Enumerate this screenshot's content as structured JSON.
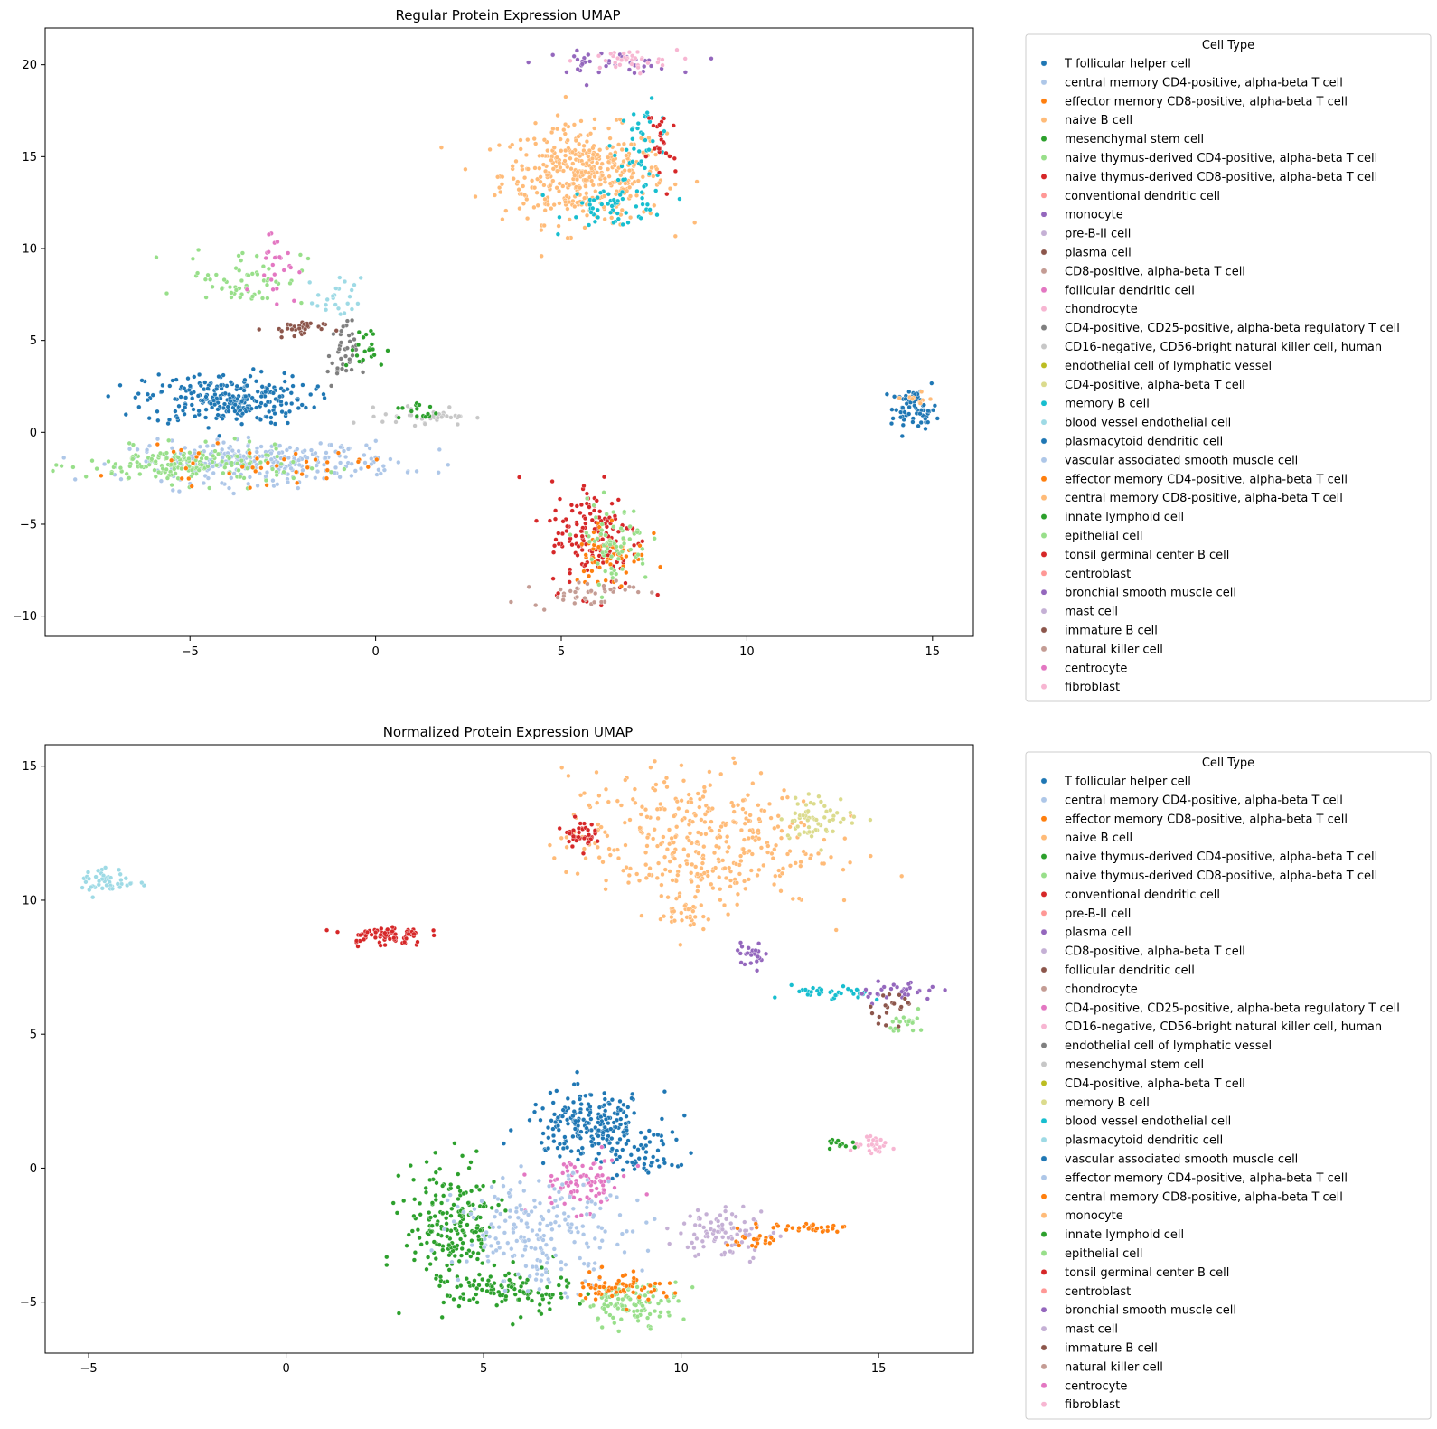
{
  "chart_data": [
    {
      "type": "scatter",
      "title": "Regular Protein Expression UMAP",
      "xlabel": "",
      "ylabel": "",
      "xlim": [
        -8.9,
        16.1
      ],
      "ylim": [
        -11.1,
        22.0
      ],
      "x_ticks": [
        -5,
        0,
        5,
        10,
        15
      ],
      "y_ticks": [
        -10,
        -5,
        0,
        5,
        10,
        15,
        20
      ],
      "grid": false,
      "legend": {
        "title": "Cell Type",
        "placement": "outside-right",
        "entries": [
          {
            "label": "T follicular helper cell",
            "color": "#1f77b4"
          },
          {
            "label": "central memory CD4-positive, alpha-beta T cell",
            "color": "#aec7e8"
          },
          {
            "label": "effector memory CD8-positive, alpha-beta T cell",
            "color": "#ff7f0e"
          },
          {
            "label": "naive B cell",
            "color": "#ffbb78"
          },
          {
            "label": "mesenchymal stem cell",
            "color": "#2ca02c"
          },
          {
            "label": "naive thymus-derived CD4-positive, alpha-beta T cell",
            "color": "#98df8a"
          },
          {
            "label": "naive thymus-derived CD8-positive, alpha-beta T cell",
            "color": "#d62728"
          },
          {
            "label": "conventional dendritic cell",
            "color": "#ff9896"
          },
          {
            "label": "monocyte",
            "color": "#9467bd"
          },
          {
            "label": "pre-B-II cell",
            "color": "#c5b0d5"
          },
          {
            "label": "plasma cell",
            "color": "#8c564b"
          },
          {
            "label": "CD8-positive, alpha-beta T cell",
            "color": "#c49c94"
          },
          {
            "label": "follicular dendritic cell",
            "color": "#e377c2"
          },
          {
            "label": "chondrocyte",
            "color": "#f7b6d2"
          },
          {
            "label": "CD4-positive, CD25-positive, alpha-beta regulatory T cell",
            "color": "#7f7f7f"
          },
          {
            "label": "CD16-negative, CD56-bright natural killer cell, human",
            "color": "#c7c7c7"
          },
          {
            "label": "endothelial cell of lymphatic vessel",
            "color": "#bcbd22"
          },
          {
            "label": "CD4-positive, alpha-beta T cell",
            "color": "#dbdb8d"
          },
          {
            "label": "memory B cell",
            "color": "#17becf"
          },
          {
            "label": "blood vessel endothelial cell",
            "color": "#9edae5"
          },
          {
            "label": "plasmacytoid dendritic cell",
            "color": "#1f77b4"
          },
          {
            "label": "vascular associated smooth muscle cell",
            "color": "#aec7e8"
          },
          {
            "label": "effector memory CD4-positive, alpha-beta T cell",
            "color": "#ff7f0e"
          },
          {
            "label": "central memory CD8-positive, alpha-beta T cell",
            "color": "#ffbb78"
          },
          {
            "label": "innate lymphoid cell",
            "color": "#2ca02c"
          },
          {
            "label": "epithelial cell",
            "color": "#98df8a"
          },
          {
            "label": "tonsil germinal center B cell",
            "color": "#d62728"
          },
          {
            "label": "centroblast",
            "color": "#ff9896"
          },
          {
            "label": "bronchial smooth muscle cell",
            "color": "#9467bd"
          },
          {
            "label": "mast cell",
            "color": "#c5b0d5"
          },
          {
            "label": "immature B cell",
            "color": "#8c564b"
          },
          {
            "label": "natural killer cell",
            "color": "#c49c94"
          },
          {
            "label": "centrocyte",
            "color": "#e377c2"
          },
          {
            "label": "fibroblast",
            "color": "#f7b6d2"
          }
        ]
      },
      "clusters": [
        {
          "name": "naive B cell",
          "color": "#ffbb78",
          "cx": 5.6,
          "cy": 14.0,
          "sx": 1.1,
          "sy": 1.3,
          "n": 420
        },
        {
          "name": "memory B cell",
          "color": "#17becf",
          "cx": 6.5,
          "cy": 12.3,
          "sx": 0.7,
          "sy": 0.6,
          "n": 60
        },
        {
          "name": "memory B cell",
          "color": "#17becf",
          "cx": 7.2,
          "cy": 15.8,
          "sx": 0.4,
          "sy": 1.0,
          "n": 40
        },
        {
          "name": "monocyte",
          "color": "#9467bd",
          "cx": 6.2,
          "cy": 20.1,
          "sx": 0.9,
          "sy": 0.3,
          "n": 40
        },
        {
          "name": "chondrocyte",
          "color": "#f7b6d2",
          "cx": 6.7,
          "cy": 20.2,
          "sx": 0.7,
          "sy": 0.3,
          "n": 35
        },
        {
          "name": "naive thymus-derived CD8-positive, alpha-beta T cell",
          "color": "#d62728",
          "cx": 7.7,
          "cy": 15.5,
          "sx": 0.2,
          "sy": 1.4,
          "n": 25
        },
        {
          "name": "T follicular helper cell",
          "color": "#1f77b4",
          "cx": -4.0,
          "cy": 1.8,
          "sx": 1.1,
          "sy": 0.7,
          "n": 260
        },
        {
          "name": "central memory CD4-positive, alpha-beta T cell",
          "color": "#aec7e8",
          "cx": -3.0,
          "cy": -1.6,
          "sx": 1.8,
          "sy": 0.55,
          "n": 300
        },
        {
          "name": "naive thymus-derived CD4-positive, alpha-beta T cell",
          "color": "#98df8a",
          "cx": -5.0,
          "cy": -1.8,
          "sx": 1.4,
          "sy": 0.5,
          "n": 180
        },
        {
          "name": "effector memory CD8-positive, alpha-beta T cell",
          "color": "#ff7f0e",
          "cx": -3.5,
          "cy": -1.9,
          "sx": 1.6,
          "sy": 0.5,
          "n": 40
        },
        {
          "name": "naive thymus-derived CD4-positive, alpha-beta T cell",
          "color": "#98df8a",
          "cx": -3.5,
          "cy": 8.5,
          "sx": 0.8,
          "sy": 0.8,
          "n": 60
        },
        {
          "name": "follicular dendritic cell",
          "color": "#e377c2",
          "cx": -2.7,
          "cy": 9.3,
          "sx": 0.3,
          "sy": 1.0,
          "n": 25
        },
        {
          "name": "plasma cell",
          "color": "#8c564b",
          "cx": -2.2,
          "cy": 5.6,
          "sx": 0.4,
          "sy": 0.25,
          "n": 30
        },
        {
          "name": "CD4-positive, CD25-positive, alpha-beta regulatory T cell",
          "color": "#7f7f7f",
          "cx": -0.9,
          "cy": 4.2,
          "sx": 0.2,
          "sy": 0.9,
          "n": 40
        },
        {
          "name": "blood vessel endothelial cell",
          "color": "#9edae5",
          "cx": -1.0,
          "cy": 7.2,
          "sx": 0.3,
          "sy": 0.6,
          "n": 25
        },
        {
          "name": "mesenchymal stem cell",
          "color": "#2ca02c",
          "cx": -0.3,
          "cy": 4.5,
          "sx": 0.3,
          "sy": 0.6,
          "n": 20
        },
        {
          "name": "CD16-negative, CD56-bright natural killer cell, human",
          "color": "#c7c7c7",
          "cx": 1.4,
          "cy": 0.9,
          "sx": 0.6,
          "sy": 0.25,
          "n": 40
        },
        {
          "name": "mesenchymal stem cell",
          "color": "#2ca02c",
          "cx": 1.1,
          "cy": 1.1,
          "sx": 0.3,
          "sy": 0.3,
          "n": 15
        },
        {
          "name": "naive thymus-derived CD8-positive, alpha-beta T cell",
          "color": "#d62728",
          "cx": 5.9,
          "cy": -5.6,
          "sx": 0.6,
          "sy": 1.5,
          "n": 150
        },
        {
          "name": "effector memory CD8-positive, alpha-beta T cell",
          "color": "#ff7f0e",
          "cx": 6.3,
          "cy": -6.5,
          "sx": 0.5,
          "sy": 1.0,
          "n": 60
        },
        {
          "name": "naive thymus-derived CD4-positive, alpha-beta T cell",
          "color": "#98df8a",
          "cx": 6.4,
          "cy": -6.0,
          "sx": 0.5,
          "sy": 1.1,
          "n": 70
        },
        {
          "name": "CD8-positive, alpha-beta T cell",
          "color": "#c49c94",
          "cx": 5.6,
          "cy": -8.7,
          "sx": 0.7,
          "sy": 0.4,
          "n": 40
        },
        {
          "name": "T follicular helper cell",
          "color": "#1f77b4",
          "cx": 14.5,
          "cy": 1.3,
          "sx": 0.3,
          "sy": 0.5,
          "n": 70
        },
        {
          "name": "central memory CD8-positive, alpha-beta T cell",
          "color": "#ffbb78",
          "cx": 14.6,
          "cy": 1.8,
          "sx": 0.2,
          "sy": 0.2,
          "n": 10
        }
      ]
    },
    {
      "type": "scatter",
      "title": "Normalized Protein Expression UMAP",
      "xlabel": "",
      "ylabel": "",
      "xlim": [
        -6.1,
        17.4
      ],
      "ylim": [
        -6.9,
        15.8
      ],
      "x_ticks": [
        -5,
        0,
        5,
        10,
        15
      ],
      "y_ticks": [
        -5,
        0,
        5,
        10,
        15
      ],
      "grid": false,
      "legend": {
        "title": "Cell Type",
        "placement": "outside-right",
        "entries": [
          {
            "label": "T follicular helper cell",
            "color": "#1f77b4"
          },
          {
            "label": "central memory CD4-positive, alpha-beta T cell",
            "color": "#aec7e8"
          },
          {
            "label": "effector memory CD8-positive, alpha-beta T cell",
            "color": "#ff7f0e"
          },
          {
            "label": "naive B cell",
            "color": "#ffbb78"
          },
          {
            "label": "naive thymus-derived CD4-positive, alpha-beta T cell",
            "color": "#2ca02c"
          },
          {
            "label": "naive thymus-derived CD8-positive, alpha-beta T cell",
            "color": "#98df8a"
          },
          {
            "label": "conventional dendritic cell",
            "color": "#d62728"
          },
          {
            "label": "pre-B-II cell",
            "color": "#ff9896"
          },
          {
            "label": "plasma cell",
            "color": "#9467bd"
          },
          {
            "label": "CD8-positive, alpha-beta T cell",
            "color": "#c5b0d5"
          },
          {
            "label": "follicular dendritic cell",
            "color": "#8c564b"
          },
          {
            "label": "chondrocyte",
            "color": "#c49c94"
          },
          {
            "label": "CD4-positive, CD25-positive, alpha-beta regulatory T cell",
            "color": "#e377c2"
          },
          {
            "label": "CD16-negative, CD56-bright natural killer cell, human",
            "color": "#f7b6d2"
          },
          {
            "label": "endothelial cell of lymphatic vessel",
            "color": "#7f7f7f"
          },
          {
            "label": "mesenchymal stem cell",
            "color": "#c7c7c7"
          },
          {
            "label": "CD4-positive, alpha-beta T cell",
            "color": "#bcbd22"
          },
          {
            "label": "memory B cell",
            "color": "#dbdb8d"
          },
          {
            "label": "blood vessel endothelial cell",
            "color": "#17becf"
          },
          {
            "label": "plasmacytoid dendritic cell",
            "color": "#9edae5"
          },
          {
            "label": "vascular associated smooth muscle cell",
            "color": "#1f77b4"
          },
          {
            "label": "effector memory CD4-positive, alpha-beta T cell",
            "color": "#aec7e8"
          },
          {
            "label": "central memory CD8-positive, alpha-beta T cell",
            "color": "#ff7f0e"
          },
          {
            "label": "monocyte",
            "color": "#ffbb78"
          },
          {
            "label": "innate lymphoid cell",
            "color": "#2ca02c"
          },
          {
            "label": "epithelial cell",
            "color": "#98df8a"
          },
          {
            "label": "tonsil germinal center B cell",
            "color": "#d62728"
          },
          {
            "label": "centroblast",
            "color": "#ff9896"
          },
          {
            "label": "bronchial smooth muscle cell",
            "color": "#9467bd"
          },
          {
            "label": "mast cell",
            "color": "#c5b0d5"
          },
          {
            "label": "immature B cell",
            "color": "#8c564b"
          },
          {
            "label": "natural killer cell",
            "color": "#c49c94"
          },
          {
            "label": "centrocyte",
            "color": "#e377c2"
          },
          {
            "label": "fibroblast",
            "color": "#f7b6d2"
          }
        ]
      },
      "clusters": [
        {
          "name": "naive B cell",
          "color": "#ffbb78",
          "cx": 10.3,
          "cy": 12.2,
          "sx": 1.6,
          "sy": 1.3,
          "n": 380
        },
        {
          "name": "memory B cell",
          "color": "#dbdb8d",
          "cx": 13.5,
          "cy": 13.1,
          "sx": 0.5,
          "sy": 0.4,
          "n": 60
        },
        {
          "name": "naive B cell",
          "color": "#ffbb78",
          "cx": 10.1,
          "cy": 9.6,
          "sx": 0.3,
          "sy": 0.4,
          "n": 30
        },
        {
          "name": "conventional dendritic cell",
          "color": "#d62728",
          "cx": 7.4,
          "cy": 12.5,
          "sx": 0.2,
          "sy": 0.25,
          "n": 40
        },
        {
          "name": "conventional dendritic cell",
          "color": "#d62728",
          "cx": 2.5,
          "cy": 8.7,
          "sx": 0.5,
          "sy": 0.2,
          "n": 70
        },
        {
          "name": "plasmacytoid dendritic cell",
          "color": "#9edae5",
          "cx": -4.5,
          "cy": 10.7,
          "sx": 0.35,
          "sy": 0.25,
          "n": 45
        },
        {
          "name": "plasma cell",
          "color": "#9467bd",
          "cx": 11.8,
          "cy": 8.0,
          "sx": 0.2,
          "sy": 0.2,
          "n": 25
        },
        {
          "name": "blood vessel endothelial cell",
          "color": "#17becf",
          "cx": 13.8,
          "cy": 6.5,
          "sx": 0.5,
          "sy": 0.15,
          "n": 35
        },
        {
          "name": "bronchial smooth muscle cell",
          "color": "#9467bd",
          "cx": 15.5,
          "cy": 6.6,
          "sx": 0.5,
          "sy": 0.2,
          "n": 35
        },
        {
          "name": "immature B cell",
          "color": "#8c564b",
          "cx": 15.4,
          "cy": 6.1,
          "sx": 0.3,
          "sy": 0.3,
          "n": 20
        },
        {
          "name": "epithelial cell",
          "color": "#98df8a",
          "cx": 15.8,
          "cy": 5.4,
          "sx": 0.25,
          "sy": 0.2,
          "n": 20
        },
        {
          "name": "fibroblast",
          "color": "#f7b6d2",
          "cx": 14.9,
          "cy": 0.8,
          "sx": 0.3,
          "sy": 0.15,
          "n": 25
        },
        {
          "name": "innate lymphoid cell",
          "color": "#2ca02c",
          "cx": 14.1,
          "cy": 0.9,
          "sx": 0.2,
          "sy": 0.1,
          "n": 12
        },
        {
          "name": "T follicular helper cell",
          "color": "#1f77b4",
          "cx": 7.7,
          "cy": 1.6,
          "sx": 0.8,
          "sy": 0.6,
          "n": 220
        },
        {
          "name": "vascular associated smooth muscle cell",
          "color": "#1f77b4",
          "cx": 9.1,
          "cy": 0.3,
          "sx": 0.4,
          "sy": 0.4,
          "n": 40
        },
        {
          "name": "centrocyte",
          "color": "#e377c2",
          "cx": 7.5,
          "cy": -0.6,
          "sx": 0.6,
          "sy": 0.5,
          "n": 80
        },
        {
          "name": "naive thymus-derived CD4-positive, alpha-beta T cell",
          "color": "#2ca02c",
          "cx": 4.2,
          "cy": -2.2,
          "sx": 0.6,
          "sy": 1.2,
          "n": 200
        },
        {
          "name": "innate lymphoid cell",
          "color": "#2ca02c",
          "cx": 5.6,
          "cy": -4.6,
          "sx": 0.8,
          "sy": 0.4,
          "n": 100
        },
        {
          "name": "effector memory CD4-positive, alpha-beta T cell",
          "color": "#aec7e8",
          "cx": 6.5,
          "cy": -2.4,
          "sx": 1.1,
          "sy": 1.0,
          "n": 220
        },
        {
          "name": "naive thymus-derived CD8-positive, alpha-beta T cell",
          "color": "#98df8a",
          "cx": 8.8,
          "cy": -5.0,
          "sx": 0.6,
          "sy": 0.4,
          "n": 110
        },
        {
          "name": "central memory CD8-positive, alpha-beta T cell",
          "color": "#ff7f0e",
          "cx": 8.5,
          "cy": -4.4,
          "sx": 0.6,
          "sy": 0.3,
          "n": 60
        },
        {
          "name": "mast cell",
          "color": "#c5b0d5",
          "cx": 11.1,
          "cy": -2.4,
          "sx": 0.6,
          "sy": 0.5,
          "n": 90
        },
        {
          "name": "central memory CD8-positive, alpha-beta T cell",
          "color": "#ff7f0e",
          "cx": 13.0,
          "cy": -2.2,
          "sx": 0.6,
          "sy": 0.08,
          "n": 30
        },
        {
          "name": "central memory CD8-positive, alpha-beta T cell",
          "color": "#ff7f0e",
          "cx": 11.8,
          "cy": -2.7,
          "sx": 0.3,
          "sy": 0.15,
          "n": 20
        }
      ]
    }
  ]
}
